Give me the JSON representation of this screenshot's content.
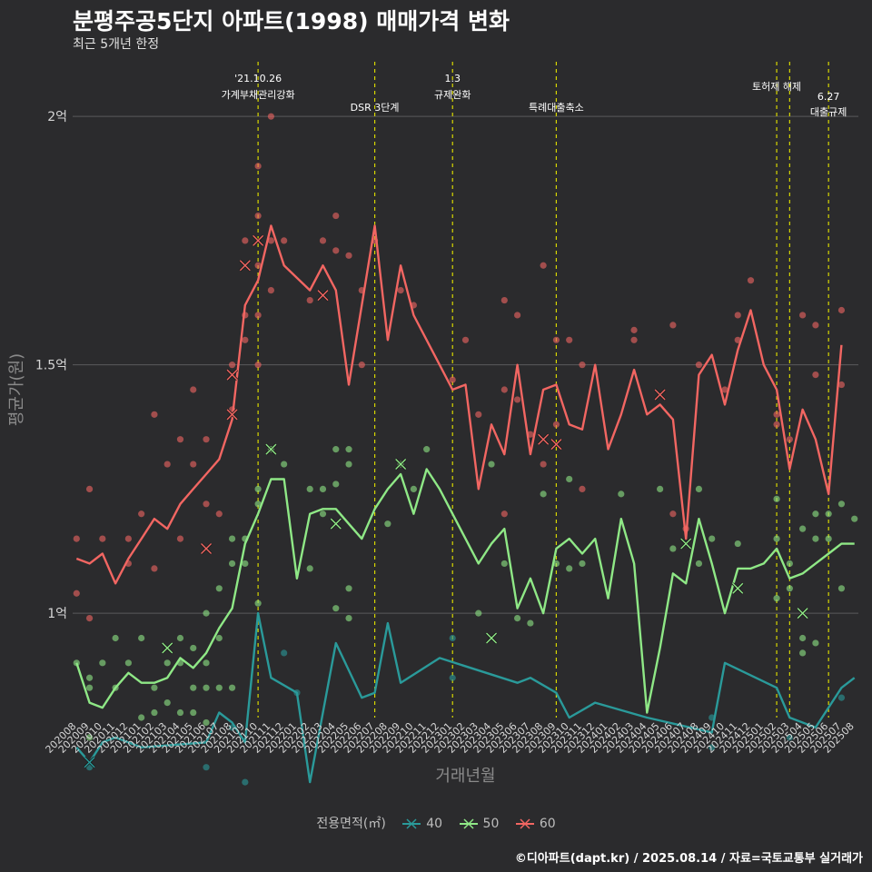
{
  "title": "분평주공5단지 아파트(1998) 매매가격 변화",
  "subtitle": "최근 5개년 한정",
  "caption": "©디아파트(dapt.kr) / 2025.08.14 / 자료=국토교통부 실거래가",
  "chart_data": {
    "type": "line",
    "xlabel": "거래년월",
    "ylabel": "평균가(원)",
    "x": [
      "202008",
      "202009",
      "202010",
      "202011",
      "202012",
      "202101",
      "202102",
      "202103",
      "202104",
      "202105",
      "202106",
      "202107",
      "202108",
      "202109",
      "202110",
      "202111",
      "202112",
      "202201",
      "202202",
      "202203",
      "202204",
      "202205",
      "202206",
      "202207",
      "202208",
      "202209",
      "202210",
      "202211",
      "202212",
      "202301",
      "202302",
      "202303",
      "202304",
      "202305",
      "202306",
      "202307",
      "202308",
      "202309",
      "202310",
      "202311",
      "202312",
      "202401",
      "202402",
      "202403",
      "202404",
      "202405",
      "202406",
      "202407",
      "202408",
      "202409",
      "202410",
      "202411",
      "202412",
      "202501",
      "202502",
      "202503",
      "202504",
      "202505",
      "202506",
      "202507",
      "202508"
    ],
    "yticks": [
      {
        "value": 1.0,
        "label": "1억"
      },
      {
        "value": 1.5,
        "label": "1.5억"
      },
      {
        "value": 2.0,
        "label": "2억"
      }
    ],
    "ylim": [
      0.79,
      2.11
    ],
    "legend_title": "전용면적(㎡)",
    "legend_position": "bottom",
    "grid": "horizontal",
    "series": [
      {
        "name": "40",
        "color": "#2a9a9a",
        "values": [
          0.73,
          0.7,
          0.74,
          0.75,
          null,
          0.73,
          null,
          null,
          null,
          null,
          0.74,
          0.8,
          0.78,
          0.74,
          1.0,
          0.87,
          null,
          0.84,
          0.66,
          null,
          0.94,
          null,
          0.83,
          0.84,
          0.98,
          0.86,
          null,
          null,
          0.91,
          null,
          null,
          null,
          null,
          null,
          0.86,
          0.87,
          null,
          0.84,
          0.79,
          null,
          0.82,
          null,
          null,
          null,
          0.79,
          null,
          null,
          null,
          null,
          0.76,
          0.9,
          null,
          null,
          null,
          0.85,
          0.79,
          null,
          0.77,
          null,
          0.85,
          0.87
        ]
      },
      {
        "name": "50",
        "color": "#8fe886",
        "values": [
          0.9,
          0.82,
          0.81,
          0.85,
          0.88,
          0.86,
          0.86,
          0.87,
          0.91,
          0.89,
          0.92,
          0.97,
          1.01,
          1.14,
          1.2,
          1.27,
          1.27,
          1.07,
          1.2,
          1.21,
          1.21,
          1.18,
          1.15,
          1.21,
          1.25,
          1.28,
          1.2,
          1.29,
          1.25,
          1.2,
          1.15,
          1.1,
          1.14,
          1.17,
          1.01,
          1.07,
          1.0,
          1.13,
          1.15,
          1.12,
          1.15,
          1.03,
          1.19,
          1.1,
          0.8,
          0.93,
          1.08,
          1.06,
          1.19,
          1.1,
          1.0,
          1.09,
          1.09,
          1.1,
          1.13,
          1.07,
          1.08,
          1.1,
          1.12,
          1.14,
          1.14
        ]
      },
      {
        "name": "60",
        "color": "#f26662",
        "values": [
          1.11,
          1.1,
          1.12,
          1.06,
          1.11,
          1.15,
          1.19,
          1.17,
          1.22,
          1.25,
          1.28,
          1.31,
          1.39,
          1.62,
          1.67,
          1.78,
          1.7,
          null,
          1.65,
          1.7,
          1.65,
          1.46,
          1.62,
          1.78,
          1.55,
          1.7,
          1.6,
          null,
          1.5,
          1.45,
          1.46,
          1.25,
          1.38,
          1.32,
          1.5,
          1.32,
          1.45,
          1.46,
          1.38,
          1.37,
          1.5,
          1.33,
          1.4,
          1.49,
          1.4,
          1.42,
          1.39,
          1.15,
          1.48,
          1.52,
          1.42,
          1.53,
          1.61,
          1.5,
          1.45,
          1.29,
          1.41,
          1.35,
          1.24,
          1.54,
          null
        ]
      }
    ],
    "points": [
      {
        "s": 2,
        "x": "202008",
        "y": 1.15
      },
      {
        "s": 2,
        "x": "202008",
        "y": 1.04
      },
      {
        "s": 2,
        "x": "202009",
        "y": 1.25
      },
      {
        "s": 2,
        "x": "202009",
        "y": 0.99
      },
      {
        "s": 2,
        "x": "202010",
        "y": 1.15
      },
      {
        "s": 2,
        "x": "202012",
        "y": 1.15
      },
      {
        "s": 2,
        "x": "202012",
        "y": 1.1
      },
      {
        "s": 2,
        "x": "202101",
        "y": 1.2
      },
      {
        "s": 2,
        "x": "202102",
        "y": 1.4
      },
      {
        "s": 2,
        "x": "202102",
        "y": 1.09
      },
      {
        "s": 2,
        "x": "202103",
        "y": 1.3
      },
      {
        "s": 2,
        "x": "202104",
        "y": 1.35
      },
      {
        "s": 2,
        "x": "202104",
        "y": 1.15
      },
      {
        "s": 2,
        "x": "202105",
        "y": 1.45
      },
      {
        "s": 2,
        "x": "202105",
        "y": 1.3
      },
      {
        "s": 2,
        "x": "202106",
        "y": 1.35
      },
      {
        "s": 2,
        "x": "202106",
        "y": 1.22
      },
      {
        "s": 2,
        "x": "202107",
        "y": 1.2
      },
      {
        "s": 2,
        "x": "202108",
        "y": 1.5
      },
      {
        "s": 2,
        "x": "202108",
        "y": 1.41
      },
      {
        "s": 2,
        "x": "202109",
        "y": 1.75
      },
      {
        "s": 2,
        "x": "202109",
        "y": 1.6
      },
      {
        "s": 2,
        "x": "202109",
        "y": 1.55
      },
      {
        "s": 2,
        "x": "202110",
        "y": 1.9
      },
      {
        "s": 2,
        "x": "202110",
        "y": 1.8
      },
      {
        "s": 2,
        "x": "202110",
        "y": 1.7
      },
      {
        "s": 2,
        "x": "202110",
        "y": 1.6
      },
      {
        "s": 2,
        "x": "202110",
        "y": 1.5
      },
      {
        "s": 2,
        "x": "202111",
        "y": 2.0
      },
      {
        "s": 2,
        "x": "202111",
        "y": 1.75
      },
      {
        "s": 2,
        "x": "202111",
        "y": 1.65
      },
      {
        "s": 2,
        "x": "202112",
        "y": 1.75
      },
      {
        "s": 2,
        "x": "202202",
        "y": 1.63
      },
      {
        "s": 2,
        "x": "202203",
        "y": 1.75
      },
      {
        "s": 2,
        "x": "202204",
        "y": 1.8
      },
      {
        "s": 2,
        "x": "202204",
        "y": 1.73
      },
      {
        "s": 2,
        "x": "202205",
        "y": 1.72
      },
      {
        "s": 2,
        "x": "202206",
        "y": 1.65
      },
      {
        "s": 2,
        "x": "202206",
        "y": 1.5
      },
      {
        "s": 2,
        "x": "202207",
        "y": 1.75
      },
      {
        "s": 2,
        "x": "202209",
        "y": 1.65
      },
      {
        "s": 2,
        "x": "202210",
        "y": 1.62
      },
      {
        "s": 2,
        "x": "202301",
        "y": 1.47
      },
      {
        "s": 2,
        "x": "202302",
        "y": 1.55
      },
      {
        "s": 2,
        "x": "202303",
        "y": 1.4
      },
      {
        "s": 2,
        "x": "202305",
        "y": 1.63
      },
      {
        "s": 2,
        "x": "202305",
        "y": 1.45
      },
      {
        "s": 2,
        "x": "202305",
        "y": 1.2
      },
      {
        "s": 2,
        "x": "202306",
        "y": 1.6
      },
      {
        "s": 2,
        "x": "202306",
        "y": 1.43
      },
      {
        "s": 2,
        "x": "202307",
        "y": 1.36
      },
      {
        "s": 2,
        "x": "202308",
        "y": 1.7
      },
      {
        "s": 2,
        "x": "202308",
        "y": 1.3
      },
      {
        "s": 2,
        "x": "202309",
        "y": 1.55
      },
      {
        "s": 2,
        "x": "202309",
        "y": 1.38
      },
      {
        "s": 2,
        "x": "202310",
        "y": 1.55
      },
      {
        "s": 2,
        "x": "202311",
        "y": 1.5
      },
      {
        "s": 2,
        "x": "202311",
        "y": 1.25
      },
      {
        "s": 2,
        "x": "202403",
        "y": 1.57
      },
      {
        "s": 2,
        "x": "202403",
        "y": 1.55
      },
      {
        "s": 2,
        "x": "202406",
        "y": 1.58
      },
      {
        "s": 2,
        "x": "202406",
        "y": 1.2
      },
      {
        "s": 2,
        "x": "202407",
        "y": 1.17
      },
      {
        "s": 2,
        "x": "202408",
        "y": 1.5
      },
      {
        "s": 2,
        "x": "202410",
        "y": 1.45
      },
      {
        "s": 2,
        "x": "202411",
        "y": 1.6
      },
      {
        "s": 2,
        "x": "202411",
        "y": 1.55
      },
      {
        "s": 2,
        "x": "202412",
        "y": 1.67
      },
      {
        "s": 2,
        "x": "202502",
        "y": 1.4
      },
      {
        "s": 2,
        "x": "202502",
        "y": 1.38
      },
      {
        "s": 2,
        "x": "202503",
        "y": 1.35
      },
      {
        "s": 2,
        "x": "202504",
        "y": 1.6
      },
      {
        "s": 2,
        "x": "202505",
        "y": 1.58
      },
      {
        "s": 2,
        "x": "202505",
        "y": 1.48
      },
      {
        "s": 2,
        "x": "202507",
        "y": 1.61
      },
      {
        "s": 2,
        "x": "202507",
        "y": 1.46
      },
      {
        "s": 1,
        "x": "202008",
        "y": 0.9
      },
      {
        "s": 1,
        "x": "202009",
        "y": 0.87
      },
      {
        "s": 1,
        "x": "202009",
        "y": 0.85
      },
      {
        "s": 1,
        "x": "202009",
        "y": 0.75
      },
      {
        "s": 1,
        "x": "202010",
        "y": 0.9
      },
      {
        "s": 1,
        "x": "202011",
        "y": 0.95
      },
      {
        "s": 1,
        "x": "202011",
        "y": 0.85
      },
      {
        "s": 1,
        "x": "202012",
        "y": 0.9
      },
      {
        "s": 1,
        "x": "202101",
        "y": 0.95
      },
      {
        "s": 1,
        "x": "202101",
        "y": 0.79
      },
      {
        "s": 1,
        "x": "202102",
        "y": 0.85
      },
      {
        "s": 1,
        "x": "202102",
        "y": 0.8
      },
      {
        "s": 1,
        "x": "202103",
        "y": 0.9
      },
      {
        "s": 1,
        "x": "202103",
        "y": 0.82
      },
      {
        "s": 1,
        "x": "202104",
        "y": 0.95
      },
      {
        "s": 1,
        "x": "202104",
        "y": 0.9
      },
      {
        "s": 1,
        "x": "202104",
        "y": 0.8
      },
      {
        "s": 1,
        "x": "202105",
        "y": 0.93
      },
      {
        "s": 1,
        "x": "202105",
        "y": 0.85
      },
      {
        "s": 1,
        "x": "202105",
        "y": 0.8
      },
      {
        "s": 1,
        "x": "202106",
        "y": 1.0
      },
      {
        "s": 1,
        "x": "202106",
        "y": 0.9
      },
      {
        "s": 1,
        "x": "202106",
        "y": 0.85
      },
      {
        "s": 1,
        "x": "202106",
        "y": 0.78
      },
      {
        "s": 1,
        "x": "202107",
        "y": 1.05
      },
      {
        "s": 1,
        "x": "202107",
        "y": 0.95
      },
      {
        "s": 1,
        "x": "202107",
        "y": 0.85
      },
      {
        "s": 1,
        "x": "202108",
        "y": 1.15
      },
      {
        "s": 1,
        "x": "202108",
        "y": 1.1
      },
      {
        "s": 1,
        "x": "202108",
        "y": 0.85
      },
      {
        "s": 1,
        "x": "202109",
        "y": 1.15
      },
      {
        "s": 1,
        "x": "202109",
        "y": 1.1
      },
      {
        "s": 1,
        "x": "202110",
        "y": 1.25
      },
      {
        "s": 1,
        "x": "202110",
        "y": 1.22
      },
      {
        "s": 1,
        "x": "202110",
        "y": 1.02
      },
      {
        "s": 1,
        "x": "202111",
        "y": 1.33
      },
      {
        "s": 1,
        "x": "202112",
        "y": 1.3
      },
      {
        "s": 1,
        "x": "202202",
        "y": 1.25
      },
      {
        "s": 1,
        "x": "202202",
        "y": 1.09
      },
      {
        "s": 1,
        "x": "202203",
        "y": 1.25
      },
      {
        "s": 1,
        "x": "202203",
        "y": 1.2
      },
      {
        "s": 1,
        "x": "202204",
        "y": 1.33
      },
      {
        "s": 1,
        "x": "202204",
        "y": 1.26
      },
      {
        "s": 1,
        "x": "202204",
        "y": 1.01
      },
      {
        "s": 1,
        "x": "202205",
        "y": 1.33
      },
      {
        "s": 1,
        "x": "202205",
        "y": 1.3
      },
      {
        "s": 1,
        "x": "202205",
        "y": 1.05
      },
      {
        "s": 1,
        "x": "202205",
        "y": 0.99
      },
      {
        "s": 1,
        "x": "202208",
        "y": 1.18
      },
      {
        "s": 1,
        "x": "202209",
        "y": 1.3
      },
      {
        "s": 1,
        "x": "202210",
        "y": 1.25
      },
      {
        "s": 1,
        "x": "202211",
        "y": 1.33
      },
      {
        "s": 1,
        "x": "202303",
        "y": 1.0
      },
      {
        "s": 1,
        "x": "202304",
        "y": 1.3
      },
      {
        "s": 1,
        "x": "202305",
        "y": 1.1
      },
      {
        "s": 1,
        "x": "202306",
        "y": 0.99
      },
      {
        "s": 1,
        "x": "202307",
        "y": 0.98
      },
      {
        "s": 1,
        "x": "202308",
        "y": 1.24
      },
      {
        "s": 1,
        "x": "202309",
        "y": 1.1
      },
      {
        "s": 1,
        "x": "202310",
        "y": 1.27
      },
      {
        "s": 1,
        "x": "202310",
        "y": 1.09
      },
      {
        "s": 1,
        "x": "202311",
        "y": 1.1
      },
      {
        "s": 1,
        "x": "202402",
        "y": 1.24
      },
      {
        "s": 1,
        "x": "202405",
        "y": 1.25
      },
      {
        "s": 1,
        "x": "202406",
        "y": 1.13
      },
      {
        "s": 1,
        "x": "202408",
        "y": 1.25
      },
      {
        "s": 1,
        "x": "202408",
        "y": 1.1
      },
      {
        "s": 1,
        "x": "202409",
        "y": 1.15
      },
      {
        "s": 1,
        "x": "202411",
        "y": 1.14
      },
      {
        "s": 1,
        "x": "202502",
        "y": 1.23
      },
      {
        "s": 1,
        "x": "202502",
        "y": 1.15
      },
      {
        "s": 1,
        "x": "202502",
        "y": 1.03
      },
      {
        "s": 1,
        "x": "202503",
        "y": 1.1
      },
      {
        "s": 1,
        "x": "202503",
        "y": 1.05
      },
      {
        "s": 1,
        "x": "202504",
        "y": 1.17
      },
      {
        "s": 1,
        "x": "202504",
        "y": 0.95
      },
      {
        "s": 1,
        "x": "202504",
        "y": 0.92
      },
      {
        "s": 1,
        "x": "202505",
        "y": 1.2
      },
      {
        "s": 1,
        "x": "202505",
        "y": 1.15
      },
      {
        "s": 1,
        "x": "202505",
        "y": 0.94
      },
      {
        "s": 1,
        "x": "202506",
        "y": 1.2
      },
      {
        "s": 1,
        "x": "202506",
        "y": 1.15
      },
      {
        "s": 1,
        "x": "202507",
        "y": 1.22
      },
      {
        "s": 1,
        "x": "202507",
        "y": 1.05
      },
      {
        "s": 1,
        "x": "202508",
        "y": 1.19
      },
      {
        "s": 0,
        "x": "202009",
        "y": 0.69
      },
      {
        "s": 0,
        "x": "202106",
        "y": 0.69
      },
      {
        "s": 0,
        "x": "202108",
        "y": 0.77
      },
      {
        "s": 0,
        "x": "202109",
        "y": 0.66
      },
      {
        "s": 0,
        "x": "202112",
        "y": 0.92
      },
      {
        "s": 0,
        "x": "202201",
        "y": 0.84
      },
      {
        "s": 0,
        "x": "202301",
        "y": 0.95
      },
      {
        "s": 0,
        "x": "202301",
        "y": 0.87
      },
      {
        "s": 0,
        "x": "202409",
        "y": 0.79
      },
      {
        "s": 0,
        "x": "202409",
        "y": 0.73
      },
      {
        "s": 0,
        "x": "202503",
        "y": 0.75
      },
      {
        "s": 0,
        "x": "202507",
        "y": 0.83
      }
    ],
    "crosses": [
      {
        "s": 0,
        "x": "202009",
        "y": 0.7
      },
      {
        "s": 1,
        "x": "202103",
        "y": 0.93
      },
      {
        "s": 1,
        "x": "202111",
        "y": 1.33
      },
      {
        "s": 1,
        "x": "202204",
        "y": 1.18
      },
      {
        "s": 1,
        "x": "202209",
        "y": 1.3
      },
      {
        "s": 1,
        "x": "202304",
        "y": 0.95
      },
      {
        "s": 1,
        "x": "202407",
        "y": 1.14
      },
      {
        "s": 1,
        "x": "202411",
        "y": 1.05
      },
      {
        "s": 1,
        "x": "202504",
        "y": 1.0
      },
      {
        "s": 2,
        "x": "202106",
        "y": 1.13
      },
      {
        "s": 2,
        "x": "202108",
        "y": 1.48
      },
      {
        "s": 2,
        "x": "202108",
        "y": 1.4
      },
      {
        "s": 2,
        "x": "202109",
        "y": 1.7
      },
      {
        "s": 2,
        "x": "202110",
        "y": 1.75
      },
      {
        "s": 2,
        "x": "202203",
        "y": 1.64
      },
      {
        "s": 2,
        "x": "202308",
        "y": 1.35
      },
      {
        "s": 2,
        "x": "202309",
        "y": 1.34
      },
      {
        "s": 2,
        "x": "202405",
        "y": 1.44
      }
    ],
    "annotations": [
      {
        "x": "202110",
        "line1": "'21.10.26",
        "line2": "가계부채관리강화",
        "row": 0
      },
      {
        "x": "202207",
        "line1": "",
        "line2": "DSR 3단계",
        "row": 1
      },
      {
        "x": "202301",
        "line1": "1.3",
        "line2": "규제완화",
        "row": 0
      },
      {
        "x": "202309",
        "line1": "",
        "line2": "특례대출축소",
        "row": 1
      },
      {
        "x": "202502",
        "line1": "",
        "line2": "토허제 해제",
        "row": 2
      },
      {
        "x": "202503",
        "line1": "",
        "line2": "",
        "row": 0
      },
      {
        "x": "202506",
        "line1": "6.27",
        "line2": "대출규제",
        "row": 3
      }
    ]
  }
}
